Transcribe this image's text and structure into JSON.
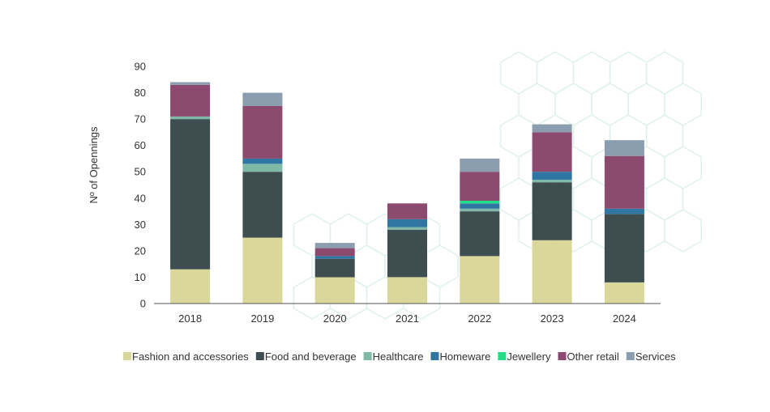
{
  "chart_data": {
    "type": "bar",
    "stacked": true,
    "title": "",
    "xlabel": "",
    "ylabel": "Nº of Opennings",
    "ylim": [
      0,
      90
    ],
    "yticks": [
      0,
      10,
      20,
      30,
      40,
      50,
      60,
      70,
      80,
      90
    ],
    "grid": false,
    "legend_position": "bottom",
    "categories": [
      "2018",
      "2019",
      "2020",
      "2021",
      "2022",
      "2023",
      "2024"
    ],
    "series": [
      {
        "name": "Fashion and accessories",
        "color": "#d9d89a",
        "values": [
          13,
          25,
          10,
          10,
          18,
          24,
          8
        ]
      },
      {
        "name": "Food and beverage",
        "color": "#3e4e50",
        "values": [
          57,
          25,
          7,
          18,
          17,
          22,
          26
        ]
      },
      {
        "name": "Healthcare",
        "color": "#7fb8a6",
        "values": [
          1,
          3,
          0,
          1,
          1,
          1,
          0
        ]
      },
      {
        "name": "Homeware",
        "color": "#2f76a3",
        "values": [
          0,
          2,
          1,
          3,
          2,
          3,
          2
        ]
      },
      {
        "name": "Jewellery",
        "color": "#22dd88",
        "values": [
          0,
          0,
          0,
          0,
          1,
          0,
          0
        ]
      },
      {
        "name": "Other retail",
        "color": "#8b4a6e",
        "values": [
          12,
          20,
          3,
          6,
          11,
          15,
          20
        ]
      },
      {
        "name": "Services",
        "color": "#8a9eaf",
        "values": [
          1,
          5,
          2,
          0,
          5,
          3,
          6
        ]
      }
    ],
    "axis_color": "#555555",
    "background_pattern_color": "#dff1ee"
  }
}
